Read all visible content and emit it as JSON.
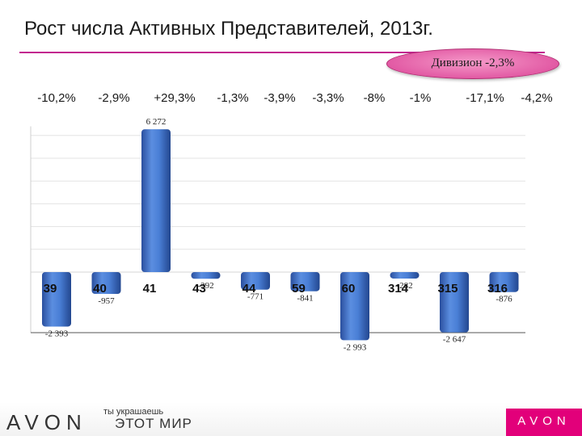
{
  "title": "Рост числа Активных Представителей, 2013г.",
  "division_badge": "Дивизион  -2,3%",
  "footer": {
    "logo": "AVON",
    "tagline_small": "ты украшаешь",
    "tagline_large": "ЭТОТ МИР",
    "mark": "AVON"
  },
  "colors": {
    "accent": "#c2248f",
    "bar": "#3f6fc6",
    "badge": "#e25aa4"
  },
  "chart_data": {
    "type": "bar",
    "title": "Рост числа Активных Представителей, 2013г.",
    "categories": [
      "39",
      "40",
      "41",
      "43",
      "44",
      "59",
      "60",
      "314",
      "315",
      "316"
    ],
    "values": [
      -2393,
      -957,
      6272,
      -292,
      -771,
      -841,
      -2993,
      -282,
      -2647,
      -876
    ],
    "value_labels": [
      "-2 393",
      "-957",
      "6 272",
      "-292",
      "-771",
      "-841",
      "-2 993",
      "-282",
      "-2 647",
      "-876"
    ],
    "percent_labels": [
      "-10,2%",
      "-2,9%",
      "+29,3%",
      "-1,3%",
      "-3,9%",
      "-3,3%",
      "-8%",
      "-1%",
      "-17,1%",
      "-4,2%"
    ],
    "ylim": [
      -3100,
      6500
    ],
    "grid": true,
    "xlabel": "",
    "ylabel": ""
  }
}
